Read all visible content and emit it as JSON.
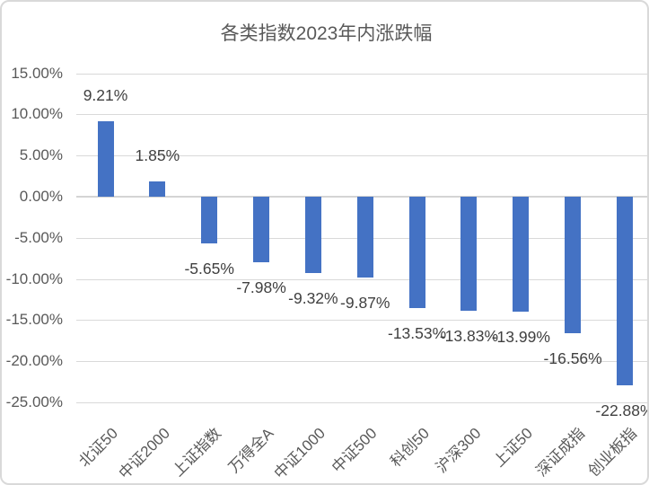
{
  "chart_data": {
    "type": "bar",
    "title": "各类指数2023年内涨跌幅",
    "categories": [
      "北证50",
      "中证2000",
      "上证指数",
      "万得全A",
      "中证1000",
      "中证500",
      "科创50",
      "沪深300",
      "上证50",
      "深证成指",
      "创业板指"
    ],
    "values": [
      9.21,
      1.85,
      -5.65,
      -7.98,
      -9.32,
      -9.87,
      -13.53,
      -13.83,
      -13.99,
      -16.56,
      -22.88
    ],
    "data_labels": [
      "9.21%",
      "1.85%",
      "-5.65%",
      "-7.98%",
      "-9.32%",
      "-9.87%",
      "-13.53%",
      "-13.83%",
      "-13.99%",
      "-16.56%",
      "-22.88%"
    ],
    "y_ticks": [
      {
        "value": 15,
        "label": "15.00%"
      },
      {
        "value": 10,
        "label": "10.00%"
      },
      {
        "value": 5,
        "label": "5.00%"
      },
      {
        "value": 0,
        "label": "0.00%"
      },
      {
        "value": -5,
        "label": "-5.00%"
      },
      {
        "value": -10,
        "label": "-10.00%"
      },
      {
        "value": -15,
        "label": "-15.00%"
      },
      {
        "value": -20,
        "label": "-20.00%"
      },
      {
        "value": -25,
        "label": "-25.00%"
      }
    ],
    "ylim": [
      -25,
      15
    ],
    "xlabel": "",
    "ylabel": "",
    "grid": true,
    "legend_position": "none",
    "colors": {
      "bar": "#4472C4",
      "gridline": "#D9D9D9",
      "zero_axis_line": "#D4D4D4",
      "axis_text": "#595959",
      "data_label_text": "#404040",
      "title_text": "#595959",
      "frame_border": "#D9D9D9",
      "background": "#FFFFFF"
    }
  }
}
